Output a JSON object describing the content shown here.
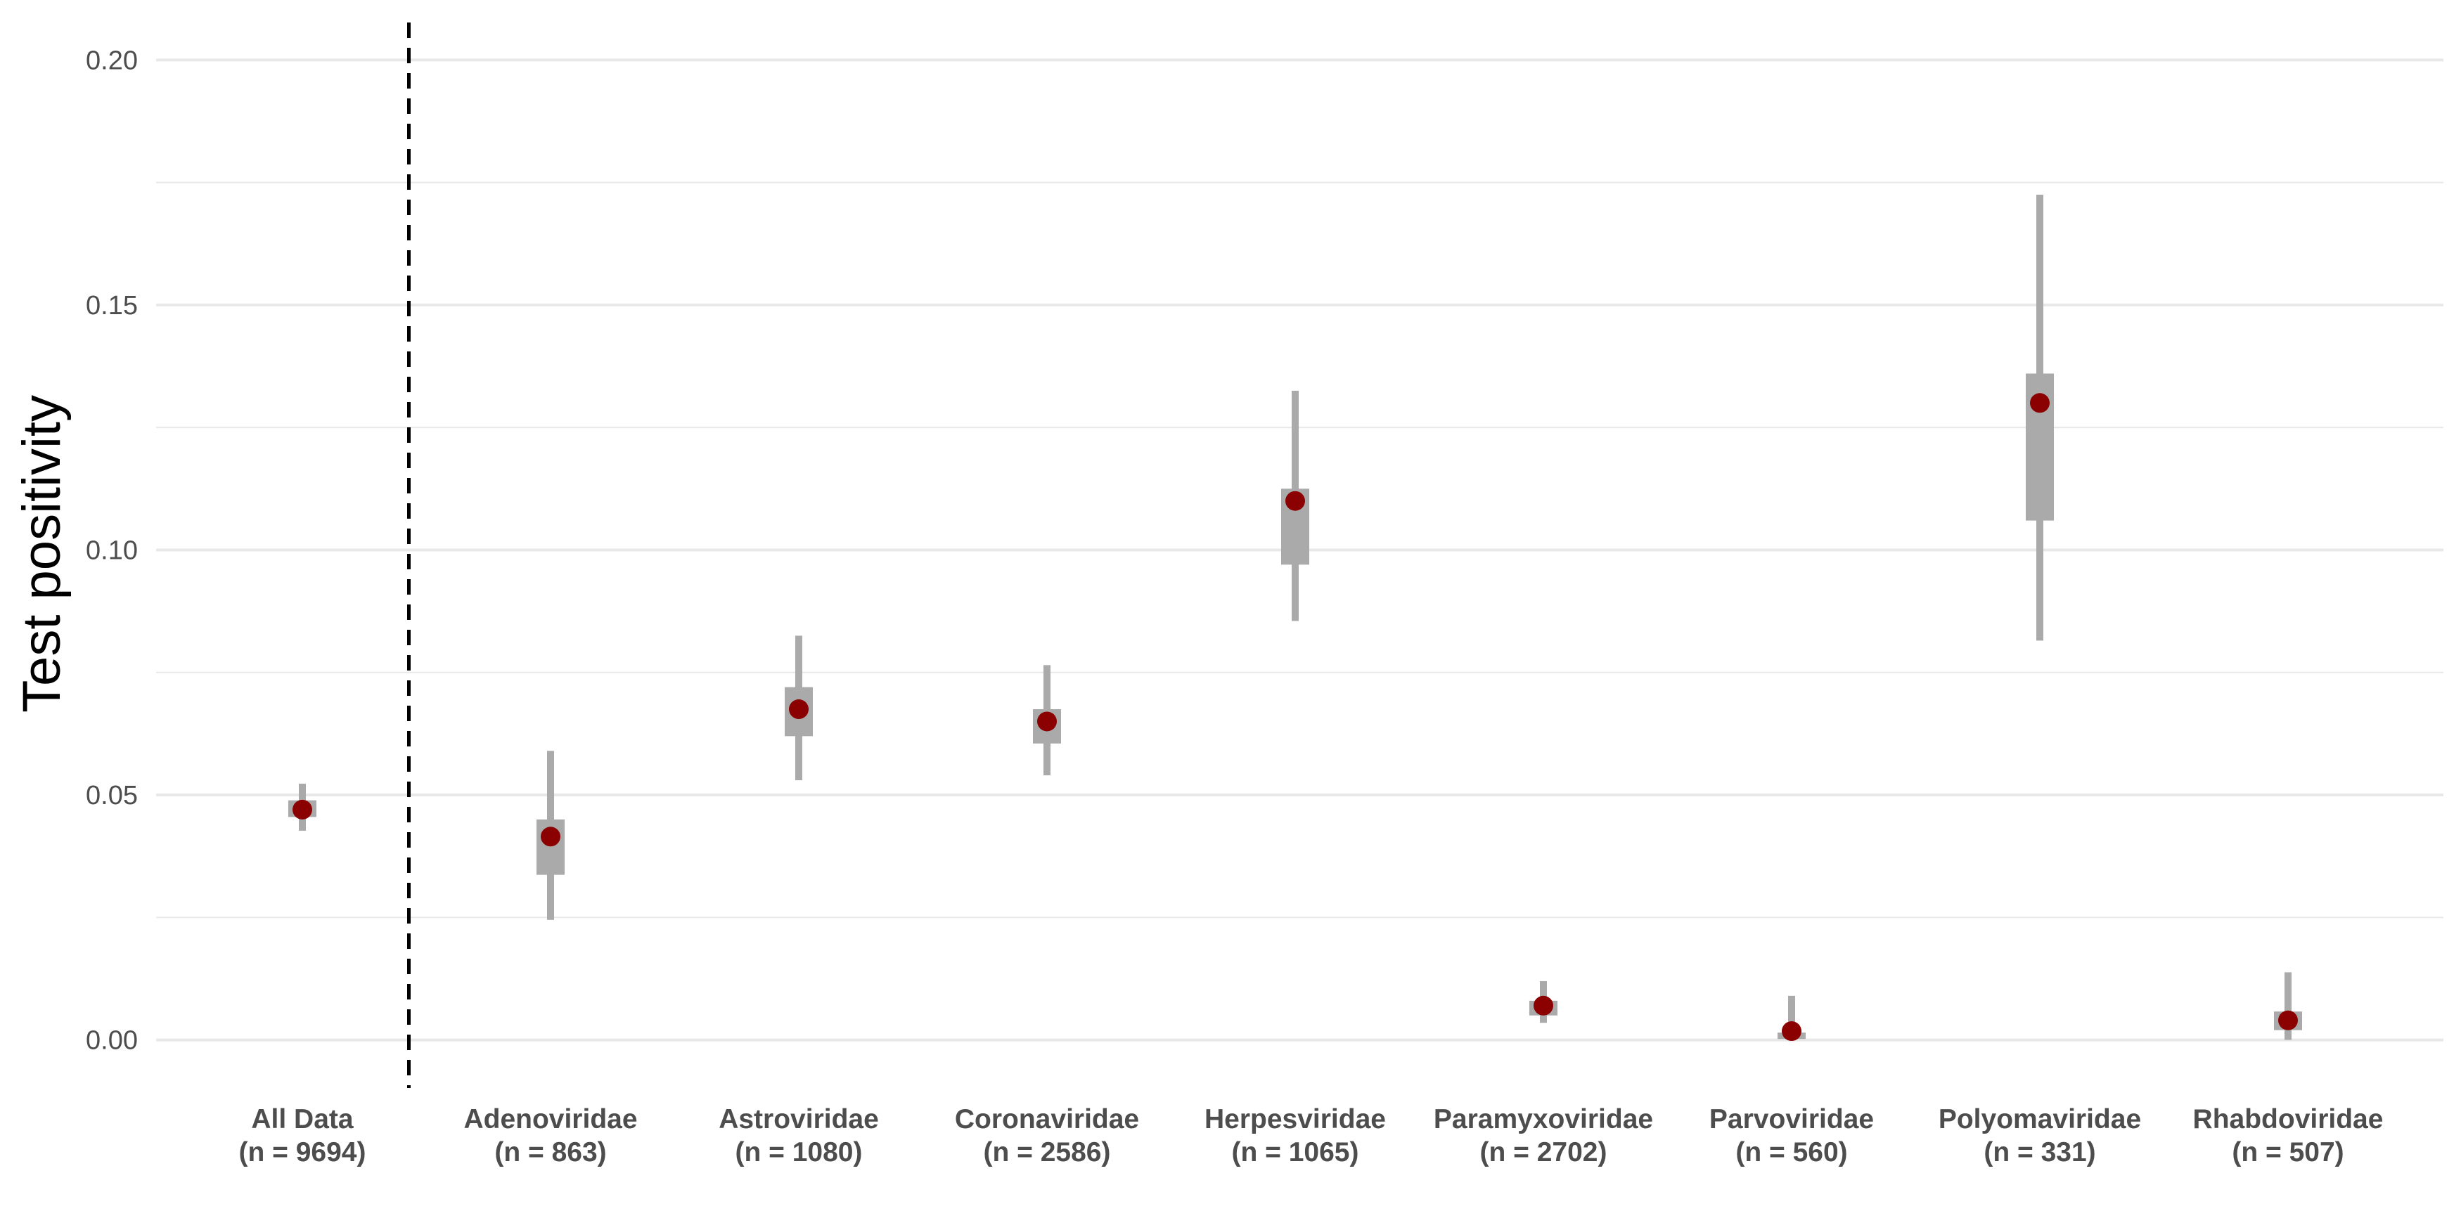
{
  "chart_data": {
    "type": "scatter",
    "ylabel": "Test positivity",
    "xlabel": "",
    "ylim": [
      -0.0101,
      0.2065
    ],
    "y_ticks": [
      {
        "value": 0.0,
        "label": "0.00"
      },
      {
        "value": 0.05,
        "label": "0.05"
      },
      {
        "value": 0.1,
        "label": "0.10"
      },
      {
        "value": 0.15,
        "label": "0.15"
      },
      {
        "value": 0.2,
        "label": "0.20"
      }
    ],
    "y_minor_ticks": [
      0.025,
      0.075,
      0.125,
      0.175
    ],
    "grid": true,
    "reference_line": {
      "style": "dashed",
      "after_category_index": 0
    },
    "colors": {
      "point": "#8b0000",
      "interval": "#aaaaaa",
      "grid": "#e8e8e8",
      "reference": "#000000"
    },
    "categories": [
      {
        "name": "All Data",
        "n_label": "(n = 9694)",
        "estimate": 0.047,
        "inner": [
          0.0455,
          0.0489
        ],
        "outer": [
          0.0427,
          0.0523
        ]
      },
      {
        "name": "Adenoviridae",
        "n_label": "(n = 863)",
        "estimate": 0.0415,
        "inner": [
          0.0337,
          0.045
        ],
        "outer": [
          0.0245,
          0.059
        ]
      },
      {
        "name": "Astroviridae",
        "n_label": "(n = 1080)",
        "estimate": 0.0675,
        "inner": [
          0.062,
          0.072
        ],
        "outer": [
          0.053,
          0.0825
        ]
      },
      {
        "name": "Coronaviridae",
        "n_label": "(n = 2586)",
        "estimate": 0.065,
        "inner": [
          0.0605,
          0.0675
        ],
        "outer": [
          0.054,
          0.0765
        ]
      },
      {
        "name": "Herpesviridae",
        "n_label": "(n = 1065)",
        "estimate": 0.11,
        "inner": [
          0.097,
          0.1125
        ],
        "outer": [
          0.0855,
          0.1325
        ]
      },
      {
        "name": "Paramyxoviridae",
        "n_label": "(n = 2702)",
        "estimate": 0.007,
        "inner": [
          0.005,
          0.008
        ],
        "outer": [
          0.0035,
          0.012
        ]
      },
      {
        "name": "Parvoviridae",
        "n_label": "(n = 560)",
        "estimate": 0.0018,
        "inner": [
          0.0002,
          0.0015
        ],
        "outer": [
          0.0,
          0.009
        ]
      },
      {
        "name": "Polyomaviridae",
        "n_label": "(n = 331)",
        "estimate": 0.13,
        "inner": [
          0.106,
          0.136
        ],
        "outer": [
          0.0815,
          0.1725
        ]
      },
      {
        "name": "Rhabdoviridae",
        "n_label": "(n = 507)",
        "estimate": 0.004,
        "inner": [
          0.002,
          0.0058
        ],
        "outer": [
          0.0,
          0.0138
        ]
      }
    ]
  }
}
